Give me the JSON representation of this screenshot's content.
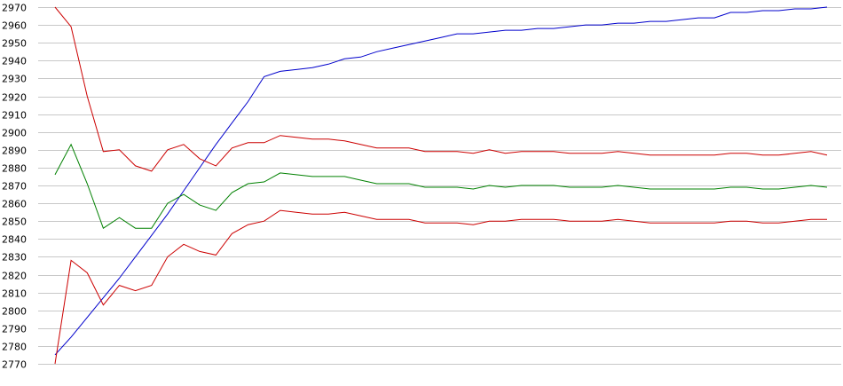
{
  "chart_data": {
    "type": "line",
    "title": "",
    "xlabel": "",
    "ylabel": "",
    "grid": true,
    "legend": "none",
    "ylim": [
      2770,
      2970
    ],
    "yticks": [
      2770,
      2780,
      2790,
      2800,
      2810,
      2820,
      2830,
      2840,
      2850,
      2860,
      2870,
      2880,
      2890,
      2900,
      2910,
      2920,
      2930,
      2940,
      2950,
      2960,
      2970
    ],
    "x": [
      0,
      1,
      2,
      3,
      4,
      5,
      6,
      7,
      8,
      9,
      10,
      11,
      12,
      13,
      14,
      15,
      16,
      17,
      18,
      19,
      20,
      21,
      22,
      23,
      24,
      25,
      26,
      27,
      28,
      29,
      30,
      31,
      32,
      33,
      34,
      35,
      36,
      37,
      38,
      39,
      40,
      41,
      42,
      43,
      44,
      45,
      46,
      47,
      48
    ],
    "xlim": [
      0,
      48
    ],
    "series": [
      {
        "color": "#0000cc",
        "values": [
          2775,
          2785,
          2796,
          2807,
          2818,
          2830,
          2842,
          2854,
          2867,
          2880,
          2893,
          2905,
          2917,
          2931,
          2934,
          2935,
          2936,
          2938,
          2941,
          2942,
          2945,
          2947,
          2949,
          2951,
          2953,
          2955,
          2955,
          2956,
          2957,
          2957,
          2958,
          2958,
          2959,
          2960,
          2960,
          2961,
          2961,
          2962,
          2962,
          2963,
          2964,
          2964,
          2967,
          2967,
          2968,
          2968,
          2969,
          2969,
          2970
        ]
      },
      {
        "color": "#cc0000",
        "values": [
          2970,
          2959,
          2920,
          2889,
          2890,
          2881,
          2878,
          2890,
          2893,
          2885,
          2881,
          2891,
          2894,
          2894,
          2898,
          2897,
          2896,
          2896,
          2895,
          2893,
          2891,
          2891,
          2891,
          2889,
          2889,
          2889,
          2888,
          2890,
          2888,
          2889,
          2889,
          2889,
          2888,
          2888,
          2888,
          2889,
          2888,
          2887,
          2887,
          2887,
          2887,
          2887,
          2888,
          2888,
          2887,
          2887,
          2888,
          2889,
          2887
        ]
      },
      {
        "color": "#008000",
        "values": [
          2876,
          2893,
          2871,
          2846,
          2852,
          2846,
          2846,
          2860,
          2865,
          2859,
          2856,
          2866,
          2871,
          2872,
          2877,
          2876,
          2875,
          2875,
          2875,
          2873,
          2871,
          2871,
          2871,
          2869,
          2869,
          2869,
          2868,
          2870,
          2869,
          2870,
          2870,
          2870,
          2869,
          2869,
          2869,
          2870,
          2869,
          2868,
          2868,
          2868,
          2868,
          2868,
          2869,
          2869,
          2868,
          2868,
          2869,
          2870,
          2869
        ]
      },
      {
        "color": "#cc0000",
        "values": [
          2770,
          2828,
          2821,
          2803,
          2814,
          2811,
          2814,
          2830,
          2837,
          2833,
          2831,
          2843,
          2848,
          2850,
          2856,
          2855,
          2854,
          2854,
          2855,
          2853,
          2851,
          2851,
          2851,
          2849,
          2849,
          2849,
          2848,
          2850,
          2850,
          2851,
          2851,
          2851,
          2850,
          2850,
          2850,
          2851,
          2850,
          2849,
          2849,
          2849,
          2849,
          2849,
          2850,
          2850,
          2849,
          2849,
          2850,
          2851,
          2851
        ]
      }
    ]
  }
}
